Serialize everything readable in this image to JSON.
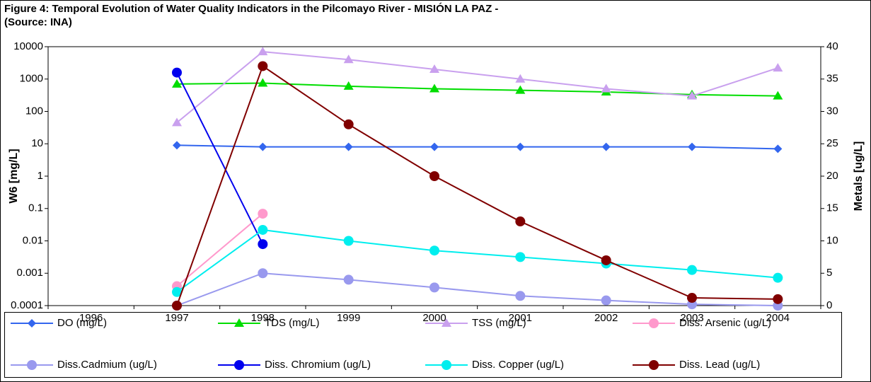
{
  "chart_data": {
    "type": "line",
    "title": "Figure 4:  Temporal Evolution of Water Quality Indicators in the Pilcomayo River - MISIÓN LA PAZ -",
    "source": "(Source: INA)",
    "y_label": "W6 [mg/L]",
    "y2_label": "Metals [ug/L]",
    "categories": [
      "1996",
      "1997",
      "1998",
      "1999",
      "2000",
      "2001",
      "2002",
      "2003",
      "2004"
    ],
    "ylim": [
      0.0001,
      10000
    ],
    "yticks": [
      0.0001,
      0.001,
      0.01,
      0.1,
      1,
      10,
      100,
      1000,
      10000
    ],
    "y_log": true,
    "y2lim": [
      0,
      40
    ],
    "y2ticks": [
      0,
      5,
      10,
      15,
      20,
      25,
      30,
      35,
      40
    ],
    "series": [
      {
        "name": "DO (mg/L)",
        "color": "#3366ee",
        "marker": "diamond",
        "values": [
          null,
          9,
          8,
          8,
          8,
          8,
          8,
          8,
          7
        ]
      },
      {
        "name": "TDS (mg/L)",
        "color": "#00dd00",
        "marker": "triangle",
        "values": [
          null,
          700,
          750,
          600,
          500,
          450,
          400,
          330,
          300
        ]
      },
      {
        "name": "TSS (mg/L)",
        "color": "#c9a0ee",
        "marker": "triangle",
        "values": [
          null,
          45,
          7000,
          4000,
          2000,
          1000,
          500,
          300,
          2200
        ]
      },
      {
        "name": "Diss. Arsenic (ug/L)",
        "color": "#ff99cc",
        "marker": "circle",
        "axis": "y2",
        "values": [
          null,
          3,
          14.2,
          null,
          null,
          null,
          null,
          null,
          null
        ]
      },
      {
        "name": "Diss.Cadmium (ug/L)",
        "color": "#9999ee",
        "marker": "circle",
        "axis": "y2",
        "values": [
          null,
          0,
          5,
          4,
          2.8,
          1.5,
          0.8,
          0.2,
          0
        ]
      },
      {
        "name": "Diss. Chromium  (ug/L)",
        "color": "#0000ee",
        "marker": "circle",
        "axis": "y2",
        "values": [
          null,
          36,
          9.5,
          null,
          null,
          null,
          null,
          null,
          null
        ]
      },
      {
        "name": "Diss. Copper  (ug/L)",
        "color": "#00eeee",
        "marker": "circle",
        "axis": "y2",
        "values": [
          null,
          2.1,
          11.7,
          10,
          8.5,
          7.5,
          6.5,
          5.5,
          4.3
        ]
      },
      {
        "name": "Diss. Lead (ug/L)",
        "color": "#800000",
        "marker": "circle",
        "axis": "y2",
        "values": [
          null,
          0,
          37,
          28,
          20,
          13,
          7,
          1.2,
          1
        ]
      }
    ]
  }
}
